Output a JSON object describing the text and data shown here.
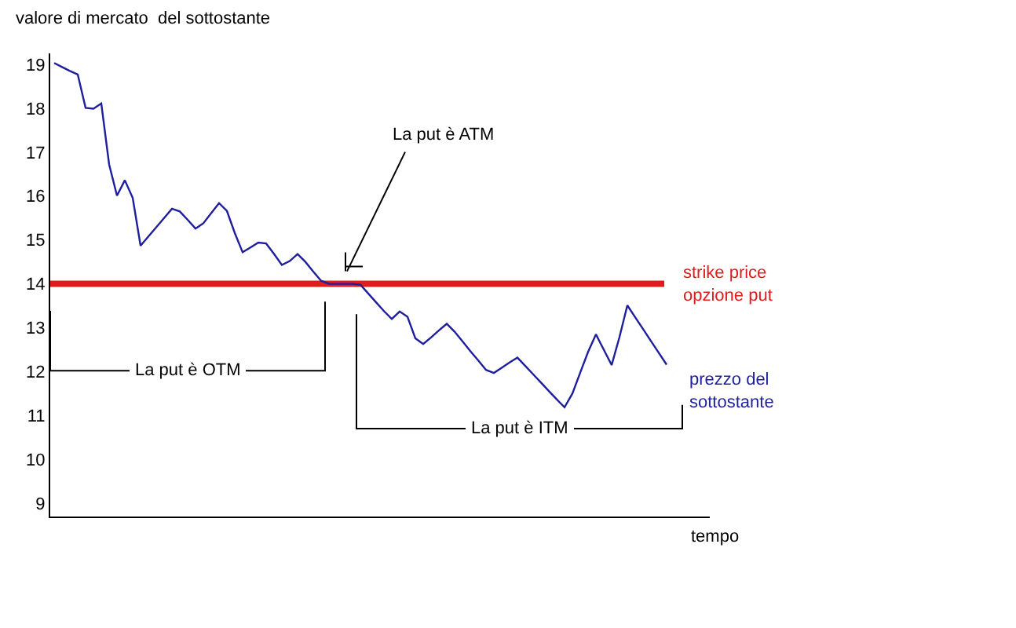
{
  "chart_data": {
    "type": "line",
    "ylabel": "valore di mercato  del sottostante",
    "xlabel": "tempo",
    "categories": [
      null,
      null,
      null,
      null,
      null,
      null,
      null,
      null,
      null,
      null,
      null,
      null,
      null,
      null,
      null,
      null,
      null,
      null,
      null,
      null,
      null,
      null,
      null,
      null,
      null,
      null,
      null,
      null,
      null,
      null,
      null,
      null,
      null,
      null,
      null,
      null,
      null,
      null,
      null,
      null,
      null,
      null,
      null,
      null,
      null,
      null,
      null,
      null,
      null,
      null,
      null,
      null,
      null,
      null,
      null,
      null,
      null,
      null,
      null,
      null,
      null,
      null,
      null,
      null,
      null,
      null,
      null,
      null,
      null,
      null,
      null,
      null,
      null,
      null,
      null,
      null,
      null,
      null,
      null
    ],
    "series": [
      {
        "name": "prezzo del sottostante",
        "color": "#1f1f9e",
        "values": [
          19.03,
          18.94,
          18.85,
          18.77,
          18.01,
          17.99,
          18.11,
          16.72,
          16.01,
          16.36,
          15.96,
          14.87,
          15.08,
          15.29,
          15.5,
          15.71,
          15.65,
          15.46,
          15.26,
          15.38,
          15.61,
          15.84,
          15.66,
          15.16,
          14.72,
          14.83,
          14.94,
          14.92,
          14.68,
          14.43,
          14.52,
          14.68,
          14.5,
          14.28,
          14.07,
          14,
          14,
          14,
          14,
          13.98,
          13.78,
          13.58,
          13.38,
          13.2,
          13.37,
          13.25,
          12.76,
          12.63,
          12.78,
          12.94,
          13.09,
          12.91,
          12.69,
          12.47,
          12.26,
          12.04,
          11.97,
          12.09,
          12.21,
          12.32,
          12.13,
          11.94,
          11.75,
          11.56,
          11.37,
          11.19,
          11.5,
          11.98,
          12.45,
          12.85,
          12.5,
          12.15,
          12.79,
          13.51,
          13.24,
          12.97,
          12.7,
          12.43,
          12.16
        ]
      }
    ],
    "ylim": [
      8.7,
      19.25
    ],
    "yticks": [
      9,
      10,
      11,
      12,
      13,
      14,
      15,
      16,
      17,
      18,
      19
    ],
    "ref_lines": [
      {
        "axis": "y",
        "value": 14,
        "label": "strike price opzione put",
        "color": "#e01c1c"
      }
    ],
    "annotations": [
      "La put è ATM",
      "La put è OTM",
      "La put è ITM"
    ],
    "grid": false,
    "legend": false,
    "marker": "none",
    "line_style": "solid"
  }
}
